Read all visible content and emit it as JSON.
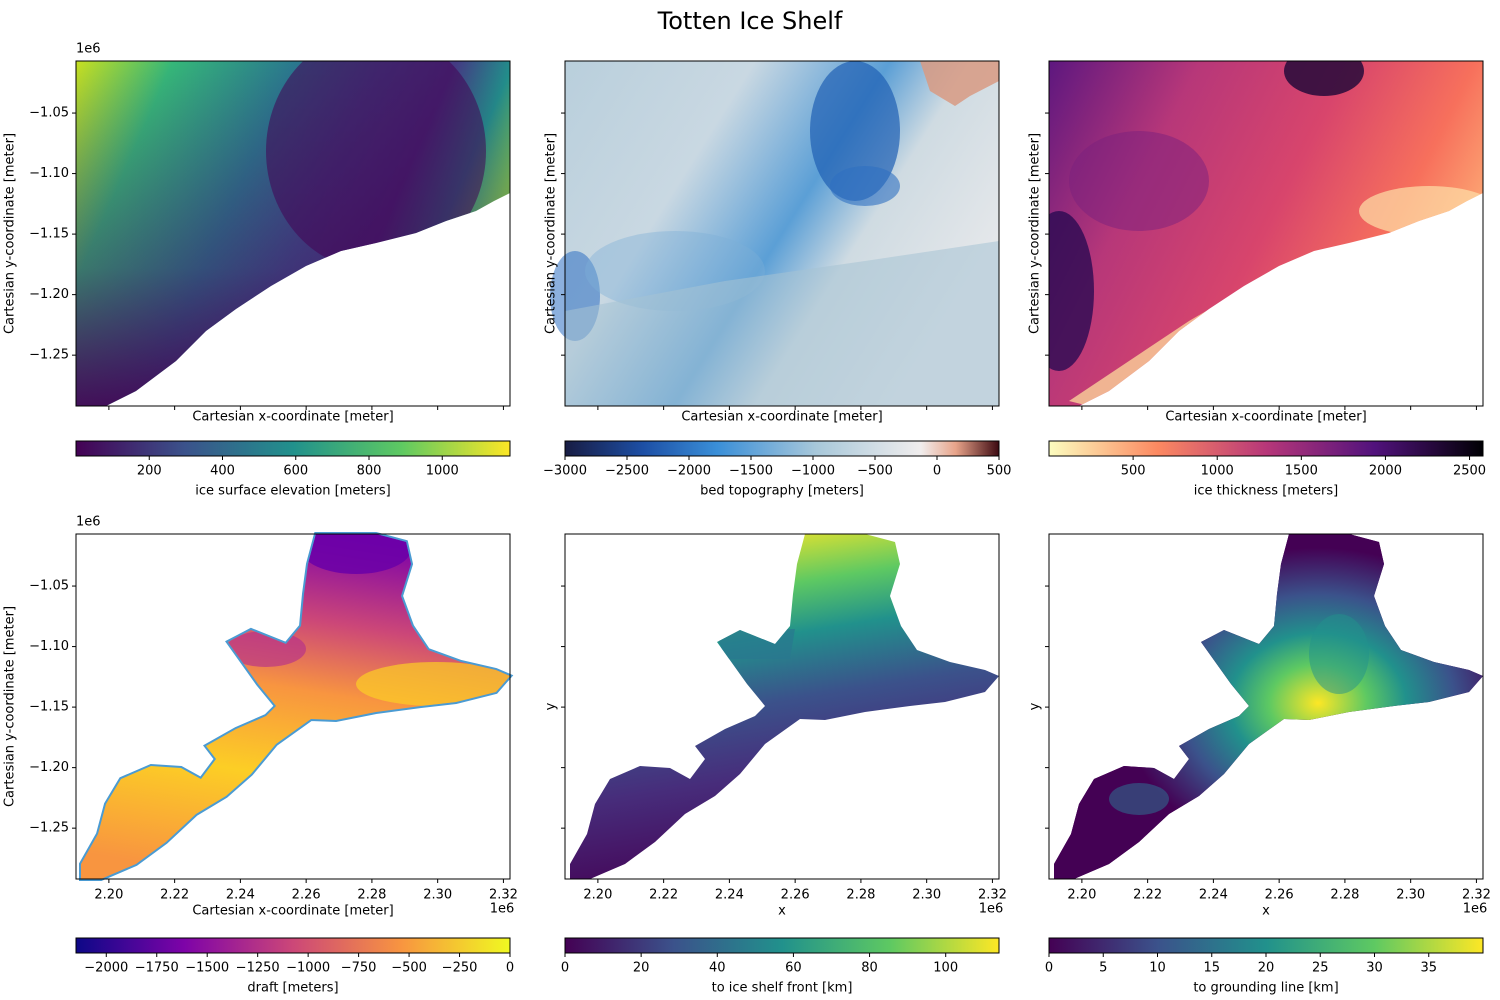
{
  "figure": {
    "title": "Totten Ice Shelf"
  },
  "chart_data": [
    {
      "type": "heatmap",
      "title": "",
      "xlabel": "Cartesian x-coordinate [meter]",
      "ylabel": "Cartesian y-coordinate [meter]",
      "x_offset_label": "",
      "y_offset_label": "1e6",
      "xlim": [
        2190000.0,
        2322000.0
      ],
      "ylim": [
        -1292000.0,
        -1007000.0
      ],
      "x_ticklabels_shown": false,
      "y_ticklabels_shown": true,
      "y_ticks": [
        -1.05,
        -1.1,
        -1.15,
        -1.2,
        -1.25
      ],
      "y_tick_labels": [
        "−1.05",
        "−1.10",
        "−1.15",
        "−1.20",
        "−1.25"
      ],
      "colormap": "viridis",
      "colorbar": {
        "label": "ice surface elevation [meters]",
        "range": [
          0,
          1185
        ],
        "ticks": [
          200,
          400,
          600,
          800,
          1000
        ],
        "tick_labels": [
          "200",
          "400",
          "600",
          "800",
          "1000"
        ]
      }
    },
    {
      "type": "heatmap",
      "title": "",
      "xlabel": "Cartesian x-coordinate [meter]",
      "ylabel": "Cartesian y-coordinate [meter]",
      "x_offset_label": "",
      "y_offset_label": "",
      "xlim": [
        2190000.0,
        2322000.0
      ],
      "ylim": [
        -1292000.0,
        -1007000.0
      ],
      "x_ticklabels_shown": false,
      "y_ticklabels_shown": false,
      "colormap": "balance",
      "colorbar": {
        "label": "bed topography [meters]",
        "range": [
          -3000,
          500
        ],
        "ticks": [
          -3000,
          -2500,
          -2000,
          -1500,
          -1000,
          -500,
          0,
          500
        ],
        "tick_labels": [
          "−3000",
          "−2500",
          "−2000",
          "−1500",
          "−1000",
          "−500",
          "0",
          "500"
        ]
      }
    },
    {
      "type": "heatmap",
      "title": "",
      "xlabel": "Cartesian x-coordinate [meter]",
      "ylabel": "Cartesian y-coordinate [meter]",
      "x_offset_label": "",
      "y_offset_label": "",
      "xlim": [
        2190000.0,
        2322000.0
      ],
      "ylim": [
        -1292000.0,
        -1007000.0
      ],
      "x_ticklabels_shown": false,
      "y_ticklabels_shown": false,
      "colormap": "magma_r",
      "colorbar": {
        "label": "ice thickness [meters]",
        "range": [
          0,
          2580
        ],
        "ticks": [
          500,
          1000,
          1500,
          2000,
          2500
        ],
        "tick_labels": [
          "500",
          "1000",
          "1500",
          "2000",
          "2500"
        ]
      }
    },
    {
      "type": "heatmap",
      "title": "",
      "xlabel": "Cartesian x-coordinate [meter]",
      "ylabel": "Cartesian y-coordinate [meter]",
      "x_offset_label": "1e6",
      "y_offset_label": "1e6",
      "xlim": [
        2190000.0,
        2322000.0
      ],
      "ylim": [
        -1292000.0,
        -1007000.0
      ],
      "x_ticklabels_shown": true,
      "y_ticklabels_shown": true,
      "x_ticks": [
        2.2,
        2.22,
        2.24,
        2.26,
        2.28,
        2.3,
        2.32
      ],
      "x_tick_labels": [
        "2.20",
        "2.22",
        "2.24",
        "2.26",
        "2.28",
        "2.30",
        "2.32"
      ],
      "y_ticks": [
        -1.05,
        -1.1,
        -1.15,
        -1.2,
        -1.25
      ],
      "y_tick_labels": [
        "−1.05",
        "−1.10",
        "−1.15",
        "−1.20",
        "−1.25"
      ],
      "colormap": "plasma",
      "colorbar": {
        "label": "draft [meters]",
        "range": [
          -2150,
          0
        ],
        "ticks": [
          -2000,
          -1750,
          -1500,
          -1250,
          -1000,
          -750,
          -500,
          -250,
          0
        ],
        "tick_labels": [
          "−2000",
          "−1750",
          "−1500",
          "−1250",
          "−1000",
          "−750",
          "−500",
          "−250",
          "0"
        ]
      }
    },
    {
      "type": "heatmap",
      "title": "",
      "xlabel": "x",
      "ylabel": "y",
      "x_offset_label": "1e6",
      "y_offset_label": "",
      "xlim": [
        2190000.0,
        2322000.0
      ],
      "ylim": [
        -1292000.0,
        -1007000.0
      ],
      "x_ticklabels_shown": true,
      "y_ticklabels_shown": false,
      "x_ticks": [
        2.2,
        2.22,
        2.24,
        2.26,
        2.28,
        2.3,
        2.32
      ],
      "x_tick_labels": [
        "2.20",
        "2.22",
        "2.24",
        "2.26",
        "2.28",
        "2.30",
        "2.32"
      ],
      "colormap": "viridis",
      "colorbar": {
        "label": "to ice shelf front [km]",
        "range": [
          0,
          114
        ],
        "ticks": [
          0,
          20,
          40,
          60,
          80,
          100
        ],
        "tick_labels": [
          "0",
          "20",
          "40",
          "60",
          "80",
          "100"
        ]
      }
    },
    {
      "type": "heatmap",
      "title": "",
      "xlabel": "x",
      "ylabel": "y",
      "x_offset_label": "1e6",
      "y_offset_label": "",
      "xlim": [
        2190000.0,
        2322000.0
      ],
      "ylim": [
        -1292000.0,
        -1007000.0
      ],
      "x_ticklabels_shown": true,
      "y_ticklabels_shown": false,
      "x_ticks": [
        2.2,
        2.22,
        2.24,
        2.26,
        2.28,
        2.3,
        2.32
      ],
      "x_tick_labels": [
        "2.20",
        "2.22",
        "2.24",
        "2.26",
        "2.28",
        "2.30",
        "2.32"
      ],
      "colormap": "viridis",
      "colorbar": {
        "label": "to grounding line [km]",
        "range": [
          0,
          40
        ],
        "ticks": [
          0,
          5,
          10,
          15,
          20,
          25,
          30,
          35
        ],
        "tick_labels": [
          "0",
          "5",
          "10",
          "15",
          "20",
          "25",
          "30",
          "35"
        ]
      }
    }
  ]
}
